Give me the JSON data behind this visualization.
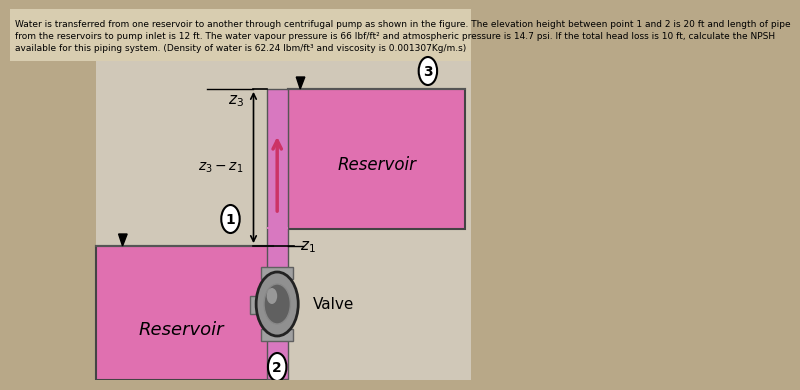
{
  "background_color": "#b8a888",
  "header_bg": "#d8cdb0",
  "header_text_line1": "Water is transferred from one reservoir to another through centrifugal pump as shown in the figure. The elevation height between point 1 and 2 is 20 ft and length of pipe",
  "header_text_line2": "from the reservoirs to pump inlet is 12 ft. The water vapour pressure is 66 lbf/ft² and atmospheric pressure is 14.7 psi. If the total head loss is 10 ft, calculate the NPSH",
  "header_text_line3": "available for this piping system. (Density of water is 62.24 lbm/ft³ and viscosity is 0.001307Kg/m.s)",
  "header_fontsize": 6.5,
  "diagram_bg": "#d0c8b8",
  "reservoir1_color": "#e070b0",
  "reservoir2_color": "#e070b0",
  "pipe_color": "#d878c0",
  "pipe_color2": "#cc70b8",
  "valve_gray": "#909090",
  "valve_dark": "#606060",
  "valve_light": "#b0b0b0",
  "flange_color": "#a0a0a0",
  "flange_edge": "#606060",
  "arrow_color": "#cc3366"
}
